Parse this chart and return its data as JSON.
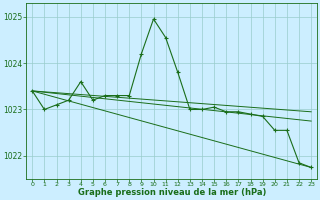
{
  "title": "Graphe pression niveau de la mer (hPa)",
  "background_color": "#cceeff",
  "grid_color": "#99cccc",
  "line_color_main": "#1a6e1a",
  "ylim": [
    1021.5,
    1025.3
  ],
  "yticks": [
    1022,
    1023,
    1024,
    1025
  ],
  "series1": {
    "x": [
      0,
      1,
      2,
      3,
      4,
      5,
      6,
      7,
      8,
      9,
      10,
      11,
      12,
      13,
      14,
      15,
      16,
      17,
      18,
      19,
      20,
      21,
      22,
      23
    ],
    "y": [
      1023.4,
      1023.0,
      1023.1,
      1023.2,
      1023.6,
      1023.2,
      1023.3,
      1023.3,
      1023.3,
      1024.2,
      1024.95,
      1024.55,
      1023.8,
      1023.0,
      1023.0,
      1023.05,
      1022.95,
      1022.95,
      1022.9,
      1022.85,
      1022.55,
      1022.55,
      1021.85,
      1021.75
    ]
  },
  "trend1": {
    "x": [
      0,
      23
    ],
    "y": [
      1023.4,
      1022.95
    ]
  },
  "trend2": {
    "x": [
      0,
      23
    ],
    "y": [
      1023.4,
      1022.75
    ]
  },
  "trend3": {
    "x": [
      0,
      23
    ],
    "y": [
      1023.4,
      1021.75
    ]
  },
  "xtick_labels": [
    "0",
    "1",
    "2",
    "3",
    "4",
    "5",
    "6",
    "7",
    "8",
    "9",
    "10",
    "11",
    "12",
    "13",
    "14",
    "15",
    "16",
    "17",
    "18",
    "19",
    "20",
    "21",
    "22",
    "23"
  ]
}
